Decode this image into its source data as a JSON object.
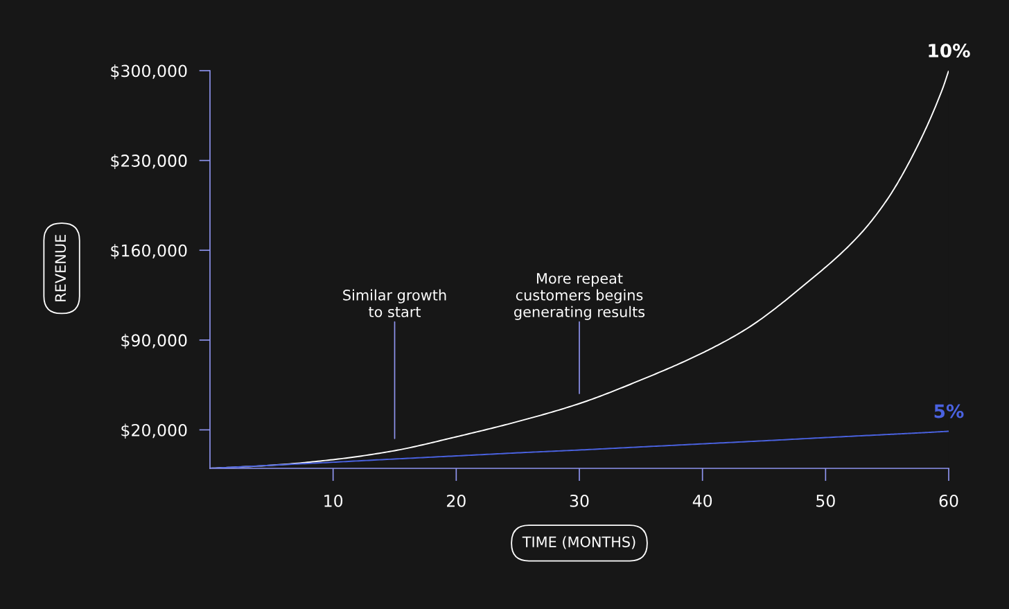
{
  "chart_data": {
    "type": "line",
    "xlabel": "TIME (MONTHS)",
    "ylabel": "REVENUE",
    "x": [
      0,
      5,
      10,
      15,
      20,
      25,
      30,
      35,
      40,
      45,
      50,
      55,
      57.5,
      60
    ],
    "series": [
      {
        "name": "10%",
        "color": "#ffffff",
        "x": [
          0,
          5,
          10,
          15,
          20,
          25,
          30,
          35,
          40,
          43.7,
          48.2,
          52.7,
          55,
          57.2,
          59.5,
          60
        ],
        "values": [
          -10000,
          -7600,
          -3200,
          3800,
          14600,
          26500,
          40500,
          58900,
          80000,
          99500,
          132400,
          171400,
          199500,
          236200,
          285900,
          300000
        ]
      },
      {
        "name": "5%",
        "color": "#4a62e0",
        "values": [
          -10000,
          -7600,
          -5200,
          -2700,
          -300,
          2100,
          4300,
          6700,
          9100,
          11500,
          14000,
          16400,
          17600,
          18900
        ]
      }
    ],
    "xlim": [
      0,
      60
    ],
    "xticks": [
      10,
      20,
      30,
      40,
      50,
      60
    ],
    "ylim": [
      -10000,
      300000
    ],
    "yticks": [
      {
        "value": 20000,
        "label": "$20,000"
      },
      {
        "value": 90000,
        "label": "$90,000"
      },
      {
        "value": 160000,
        "label": "$160,000"
      },
      {
        "value": 230000,
        "label": "$230,000"
      },
      {
        "value": 300000,
        "label": "$300,000"
      }
    ],
    "annotations": [
      "Similar growth\nto start",
      "More repeat\ncustomers begins\ngenerating results"
    ],
    "grid": false,
    "legend": false,
    "marker": "none",
    "line_style": "solid"
  }
}
